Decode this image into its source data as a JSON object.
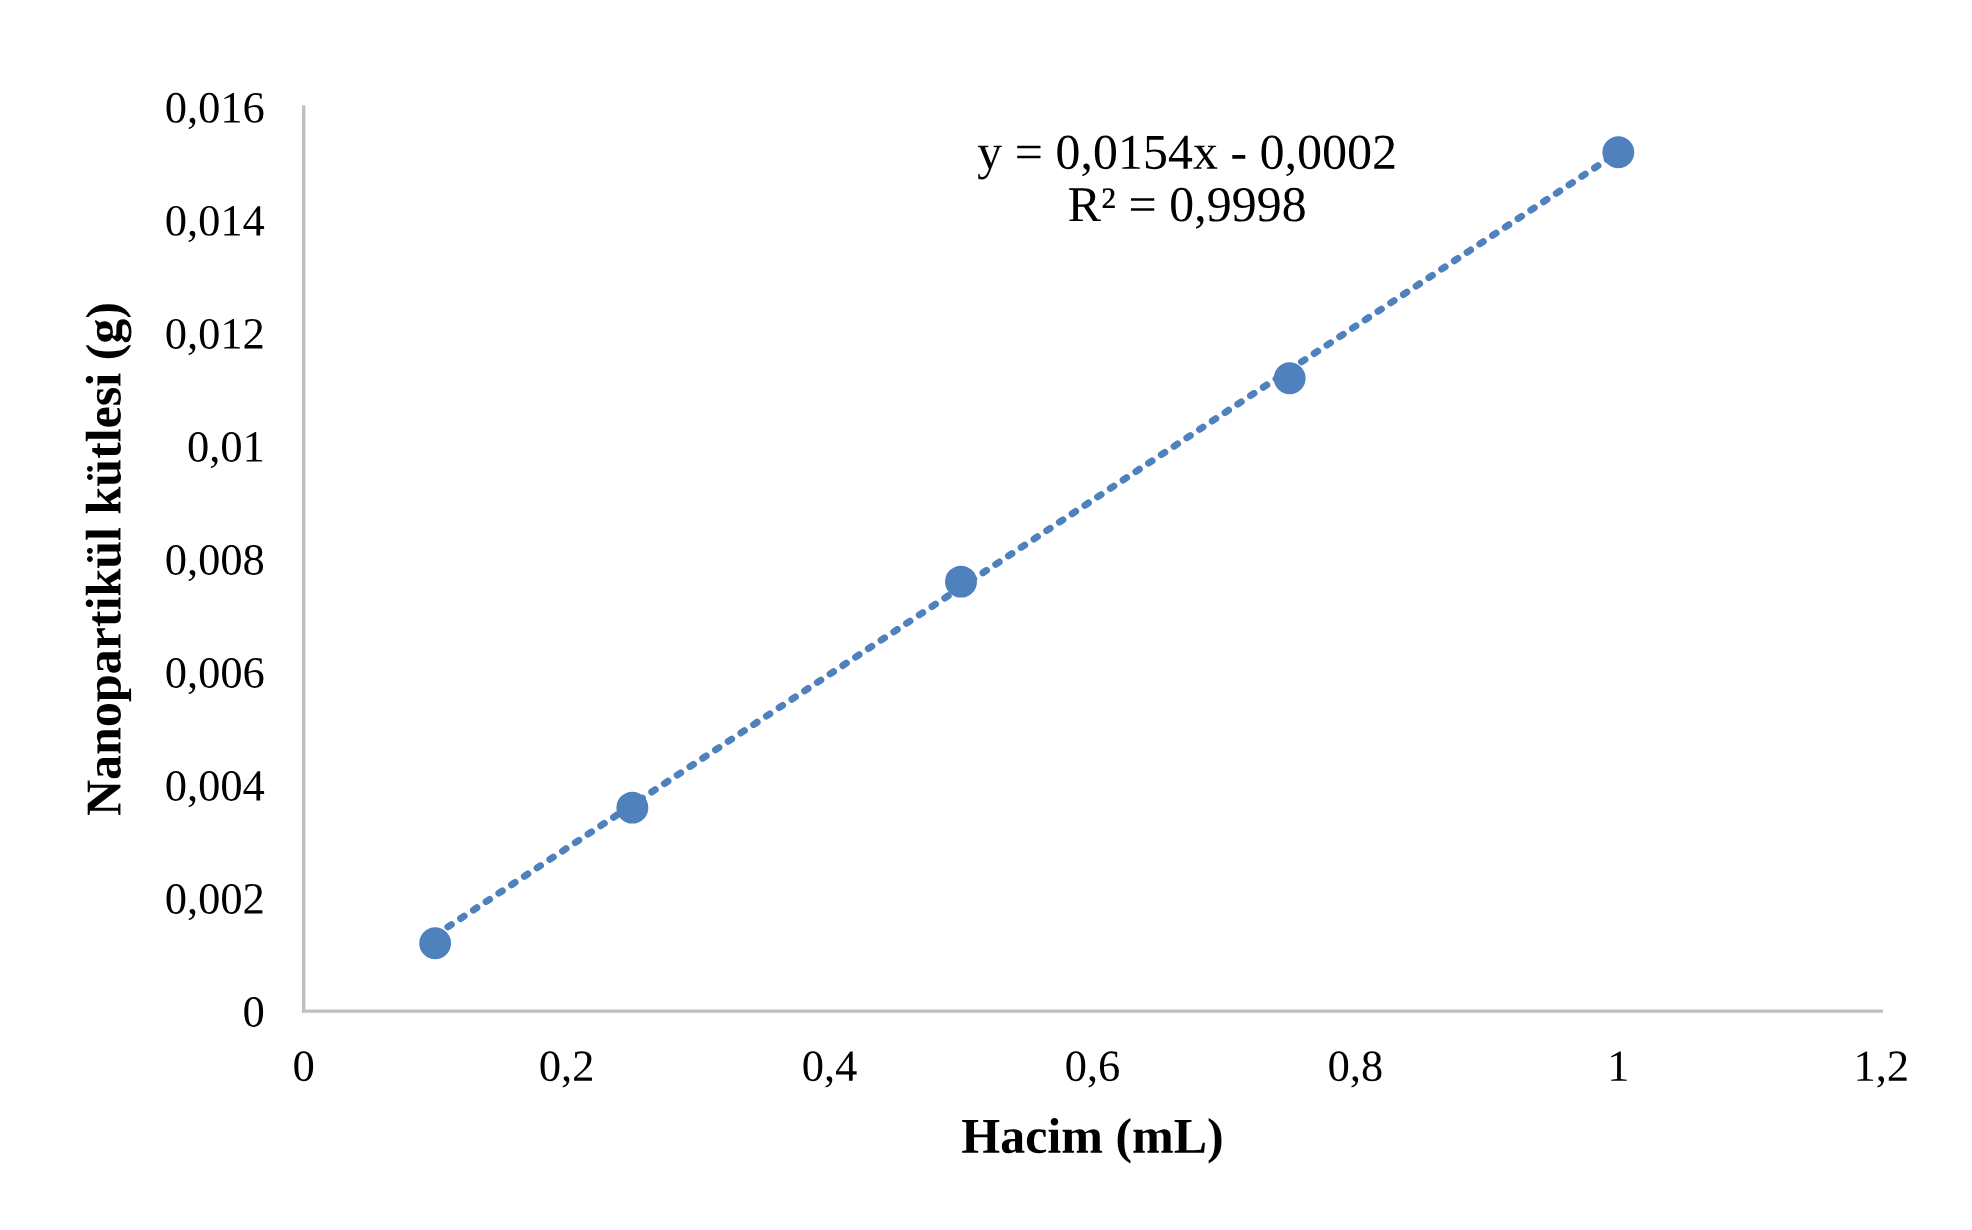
{
  "chart_data": {
    "type": "scatter",
    "xlabel": "Hacim (mL)",
    "ylabel": "Nanopartikül kütlesi (g)",
    "series": [
      {
        "color": "#4f81bd",
        "marker": "circle",
        "x": [
          0.1,
          0.25,
          0.5,
          0.75,
          1
        ],
        "values": [
          0.0012,
          0.0036,
          0.0076,
          0.0112,
          0.0152
        ]
      },
      {
        "type": "line",
        "color": "#4f81bd",
        "line_style": "dotted",
        "marker": "none",
        "x": [
          0.1,
          1
        ],
        "values": [
          0.00134,
          0.0152
        ]
      }
    ],
    "annotations": [
      "y = 0,0154x - 0,0002\nR² = 0,9998"
    ],
    "xlim": [
      0,
      1.2
    ],
    "ylim": [
      0,
      0.016
    ],
    "xticks": [
      0,
      {
        "value": 0.2,
        "label": "0,2"
      },
      {
        "value": 0.4,
        "label": "0,4"
      },
      {
        "value": 0.6,
        "label": "0,6"
      },
      {
        "value": 0.8,
        "label": "0,8"
      },
      1,
      {
        "value": 1.2,
        "label": "1,2"
      }
    ],
    "yticks": [
      0,
      {
        "value": 0.002,
        "label": "0,002"
      },
      {
        "value": 0.004,
        "label": "0,004"
      },
      {
        "value": 0.006,
        "label": "0,006"
      },
      {
        "value": 0.008,
        "label": "0,008"
      },
      {
        "value": 0.01,
        "label": "0,01"
      },
      {
        "value": 0.012,
        "label": "0,012"
      },
      {
        "value": 0.014,
        "label": "0,014"
      },
      {
        "value": 0.016,
        "label": "0,016"
      }
    ],
    "grid": false,
    "legend": false
  }
}
